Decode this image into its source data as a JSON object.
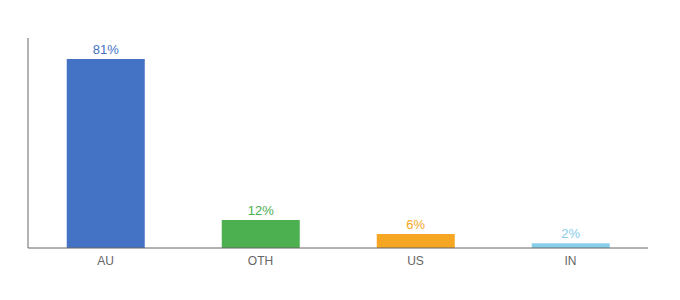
{
  "chart_data": {
    "type": "bar",
    "categories": [
      "AU",
      "OTH",
      "US",
      "IN"
    ],
    "values": [
      81,
      12,
      6,
      2
    ],
    "value_labels": [
      "81%",
      "12%",
      "6%",
      "2%"
    ],
    "colors": [
      "#4472c4",
      "#4caf50",
      "#f5a623",
      "#87ceeb"
    ],
    "ylim": [
      0,
      90
    ],
    "data_labels": true,
    "tick_labels": "x",
    "grid": false
  }
}
